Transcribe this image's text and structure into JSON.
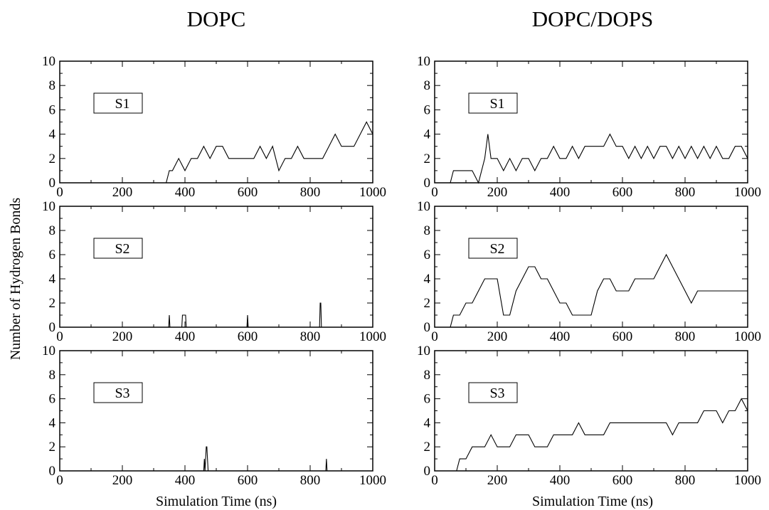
{
  "figure": {
    "column_titles": [
      "DOPC",
      "DOPC/DOPS"
    ],
    "ylabel": "Number of Hydrogen Bonds",
    "xlabel": "Simulation Time (ns)"
  },
  "chart_data": [
    {
      "type": "line",
      "column": "DOPC",
      "panel": "S1",
      "xlim": [
        0,
        1000
      ],
      "ylim": [
        0,
        10
      ],
      "xticks": [
        "0",
        "200",
        "400",
        "600",
        "800",
        "1000"
      ],
      "yticks": [
        "0",
        "2",
        "4",
        "6",
        "8",
        "10"
      ],
      "series": [
        {
          "x": [
            0,
            340,
            350,
            360,
            380,
            400,
            420,
            440,
            460,
            480,
            500,
            520,
            540,
            560,
            580,
            600,
            620,
            640,
            660,
            680,
            700,
            720,
            740,
            760,
            780,
            800,
            820,
            840,
            860,
            880,
            900,
            920,
            940,
            960,
            980,
            1000
          ],
          "y": [
            0,
            0,
            1,
            1,
            2,
            1,
            2,
            2,
            3,
            2,
            3,
            3,
            2,
            2,
            2,
            2,
            2,
            3,
            2,
            3,
            1,
            2,
            2,
            3,
            2,
            2,
            2,
            2,
            3,
            4,
            3,
            3,
            3,
            4,
            5,
            4
          ]
        }
      ]
    },
    {
      "type": "line",
      "column": "DOPC/DOPS",
      "panel": "S1",
      "xlim": [
        0,
        1000
      ],
      "ylim": [
        0,
        10
      ],
      "xticks": [
        "0",
        "200",
        "400",
        "600",
        "800",
        "1000"
      ],
      "yticks": [
        "0",
        "2",
        "4",
        "6",
        "8",
        "10"
      ],
      "series": [
        {
          "x": [
            0,
            50,
            60,
            80,
            100,
            120,
            140,
            160,
            170,
            180,
            200,
            220,
            240,
            260,
            280,
            300,
            320,
            340,
            360,
            380,
            400,
            420,
            440,
            460,
            480,
            500,
            520,
            540,
            560,
            580,
            600,
            620,
            640,
            660,
            680,
            700,
            720,
            740,
            760,
            780,
            800,
            820,
            840,
            860,
            880,
            900,
            920,
            940,
            960,
            980,
            1000
          ],
          "y": [
            0,
            0,
            1,
            1,
            1,
            1,
            0,
            2,
            4,
            2,
            2,
            1,
            2,
            1,
            2,
            2,
            1,
            2,
            2,
            3,
            2,
            2,
            3,
            2,
            3,
            3,
            3,
            3,
            4,
            3,
            3,
            2,
            3,
            2,
            3,
            2,
            3,
            3,
            2,
            3,
            2,
            3,
            2,
            3,
            2,
            3,
            2,
            2,
            3,
            3,
            2
          ]
        }
      ]
    },
    {
      "type": "line",
      "column": "DOPC",
      "panel": "S2",
      "xlim": [
        0,
        1000
      ],
      "ylim": [
        0,
        10
      ],
      "xticks": [
        "0",
        "200",
        "400",
        "600",
        "800",
        "1000"
      ],
      "yticks": [
        "0",
        "2",
        "4",
        "6",
        "8",
        "10"
      ],
      "series": [
        {
          "x": [
            0,
            348,
            350,
            352,
            390,
            392,
            400,
            402,
            404,
            598,
            600,
            602,
            830,
            832,
            834,
            836,
            1000
          ],
          "y": [
            0,
            0,
            1,
            0,
            0,
            1,
            1,
            1,
            0,
            0,
            1,
            0,
            0,
            2,
            2,
            0,
            0
          ]
        }
      ]
    },
    {
      "type": "line",
      "column": "DOPC/DOPS",
      "panel": "S2",
      "xlim": [
        0,
        1000
      ],
      "ylim": [
        0,
        10
      ],
      "xticks": [
        "0",
        "200",
        "400",
        "600",
        "800",
        "1000"
      ],
      "yticks": [
        "0",
        "2",
        "4",
        "6",
        "8",
        "10"
      ],
      "series": [
        {
          "x": [
            0,
            50,
            60,
            80,
            100,
            120,
            140,
            160,
            180,
            200,
            220,
            240,
            260,
            280,
            300,
            320,
            340,
            360,
            380,
            400,
            420,
            440,
            460,
            480,
            500,
            520,
            540,
            560,
            580,
            600,
            620,
            640,
            660,
            680,
            700,
            720,
            740,
            760,
            780,
            800,
            820,
            840,
            860,
            880,
            900,
            920,
            940,
            960,
            980,
            1000
          ],
          "y": [
            0,
            0,
            1,
            1,
            2,
            2,
            3,
            4,
            4,
            4,
            1,
            1,
            3,
            4,
            5,
            5,
            4,
            4,
            3,
            2,
            2,
            1,
            1,
            1,
            1,
            3,
            4,
            4,
            3,
            3,
            3,
            4,
            4,
            4,
            4,
            5,
            6,
            5,
            4,
            3,
            2,
            3,
            3,
            3,
            3,
            3,
            3,
            3,
            3,
            3
          ]
        }
      ]
    },
    {
      "type": "line",
      "column": "DOPC",
      "panel": "S3",
      "xlim": [
        0,
        1000
      ],
      "ylim": [
        0,
        10
      ],
      "xticks": [
        "0",
        "200",
        "400",
        "600",
        "800",
        "1000"
      ],
      "yticks": [
        "0",
        "2",
        "4",
        "6",
        "8",
        "10"
      ],
      "series": [
        {
          "x": [
            0,
            460,
            462,
            464,
            466,
            468,
            470,
            472,
            474,
            850,
            852,
            854,
            1000
          ],
          "y": [
            0,
            0,
            1,
            0,
            1,
            2,
            2,
            1,
            0,
            0,
            1,
            0,
            0
          ]
        }
      ]
    },
    {
      "type": "line",
      "column": "DOPC/DOPS",
      "panel": "S3",
      "xlim": [
        0,
        1000
      ],
      "ylim": [
        0,
        10
      ],
      "xticks": [
        "0",
        "200",
        "400",
        "600",
        "800",
        "1000"
      ],
      "yticks": [
        "0",
        "2",
        "4",
        "6",
        "8",
        "10"
      ],
      "series": [
        {
          "x": [
            0,
            70,
            80,
            100,
            120,
            140,
            160,
            180,
            200,
            220,
            240,
            260,
            280,
            300,
            320,
            340,
            360,
            380,
            400,
            420,
            440,
            460,
            480,
            500,
            520,
            540,
            560,
            580,
            600,
            620,
            640,
            660,
            680,
            700,
            720,
            740,
            760,
            780,
            800,
            820,
            840,
            860,
            880,
            900,
            920,
            940,
            960,
            980,
            1000
          ],
          "y": [
            0,
            0,
            1,
            1,
            2,
            2,
            2,
            3,
            2,
            2,
            2,
            3,
            3,
            3,
            2,
            2,
            2,
            3,
            3,
            3,
            3,
            4,
            3,
            3,
            3,
            3,
            4,
            4,
            4,
            4,
            4,
            4,
            4,
            4,
            4,
            4,
            3,
            4,
            4,
            4,
            4,
            5,
            5,
            5,
            4,
            5,
            5,
            6,
            5
          ]
        }
      ]
    }
  ]
}
